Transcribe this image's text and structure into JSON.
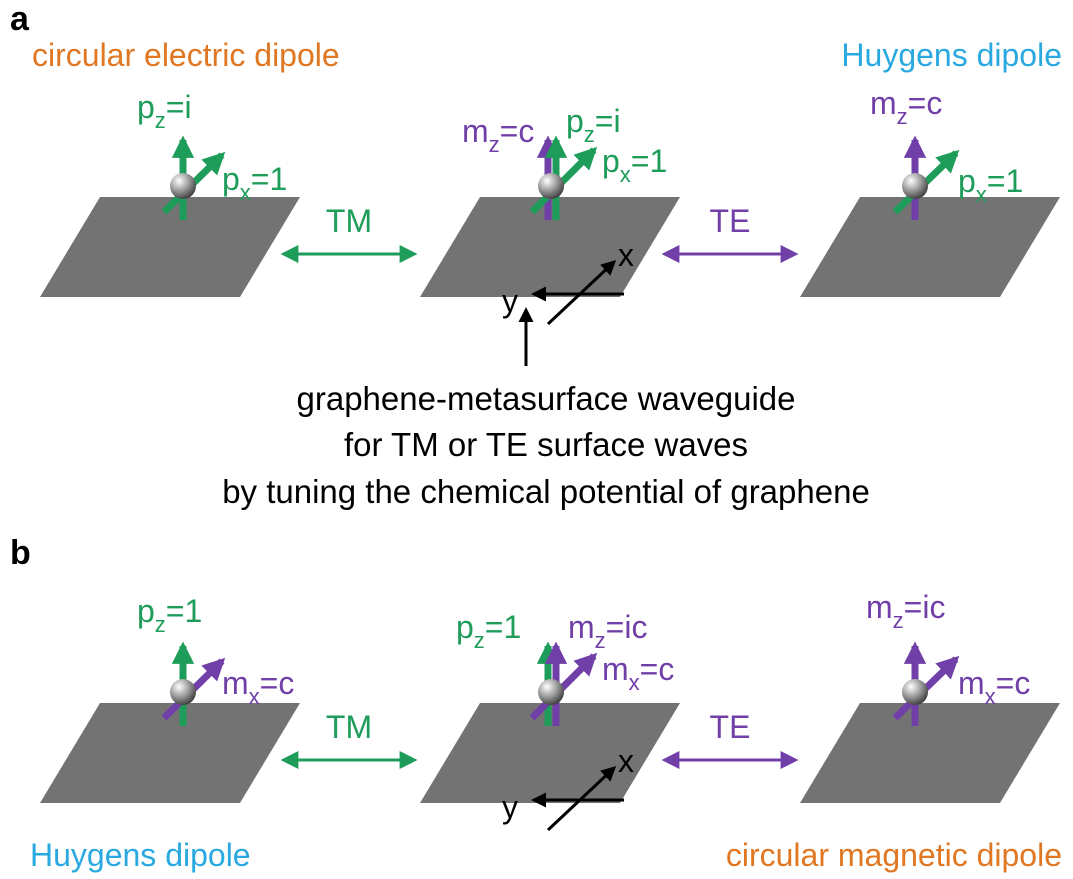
{
  "colors": {
    "green": "#1e9c5a",
    "purple": "#7040a8",
    "orange": "#e07722",
    "cyan": "#29a9e0",
    "plate": "#737373",
    "black": "#000000"
  },
  "panel_a": {
    "letter": "a",
    "title_left": "circular electric dipole",
    "title_right": "Huygens dipole",
    "dipole1": {
      "pz_base": "p",
      "pz_sub": "z",
      "pz_val": "=i",
      "px_base": "p",
      "px_sub": "x",
      "px_val": "=1"
    },
    "dipole2": {
      "mz_base": "m",
      "mz_sub": "z",
      "mz_val": "=c",
      "pz_base": "p",
      "pz_sub": "z",
      "pz_val": "=i",
      "px_base": "p",
      "px_sub": "x",
      "px_val": "=1"
    },
    "dipole3": {
      "mz_base": "m",
      "mz_sub": "z",
      "mz_val": "=c",
      "px_base": "p",
      "px_sub": "x",
      "px_val": "=1"
    },
    "tm_label": "TM",
    "te_label": "TE",
    "axis_x": "x",
    "axis_y": "y",
    "caption_line1": "graphene-metasurface waveguide",
    "caption_line2": "for TM or TE surface waves",
    "caption_line3": "by tuning the chemical potential of graphene"
  },
  "panel_b": {
    "letter": "b",
    "dipole1": {
      "pz_base": "p",
      "pz_sub": "z",
      "pz_val": "=1",
      "mx_base": "m",
      "mx_sub": "x",
      "mx_val": "=c"
    },
    "dipole2": {
      "pz_base": "p",
      "pz_sub": "z",
      "pz_val": "=1",
      "mz_base": "m",
      "mz_sub": "z",
      "mz_val": "=ic",
      "mx_base": "m",
      "mx_sub": "x",
      "mx_val": "=c"
    },
    "dipole3": {
      "mz_base": "m",
      "mz_sub": "z",
      "mz_val": "=ic",
      "mx_base": "m",
      "mx_sub": "x",
      "mx_val": "=c"
    },
    "tm_label": "TM",
    "te_label": "TE",
    "axis_x": "x",
    "axis_y": "y",
    "bottom_left": "Huygens dipole",
    "bottom_right": "circular magnetic dipole"
  }
}
